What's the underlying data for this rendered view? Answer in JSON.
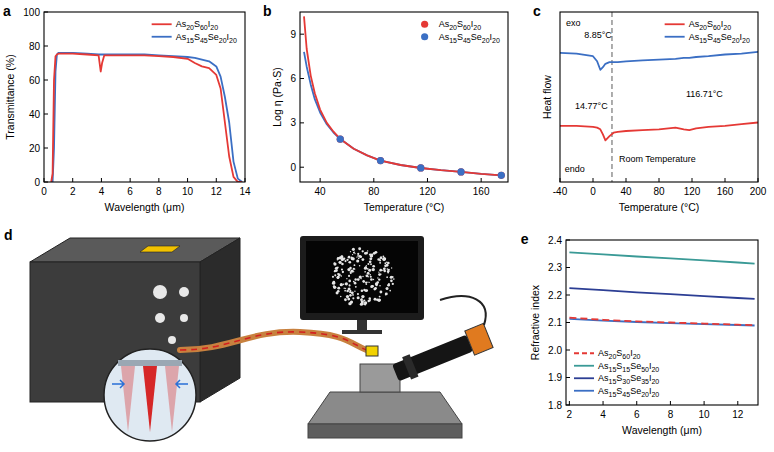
{
  "chart_data": [
    {
      "panel": "a",
      "type": "line",
      "xlabel": "Wavelength (μm)",
      "ylabel": "Transmittance (%)",
      "x": [
        0.5,
        0.6,
        0.7,
        0.8,
        0.9,
        1.0,
        2,
        3,
        3.8,
        3.95,
        4.05,
        4.2,
        5,
        6,
        7,
        8,
        9,
        10,
        10.5,
        11,
        11.5,
        12,
        12.3,
        12.6,
        12.9,
        13.2,
        13.5,
        13.8
      ],
      "xlim": [
        0,
        14
      ],
      "xticks": [
        0,
        2,
        4,
        6,
        8,
        10,
        12,
        14
      ],
      "ylim": [
        0,
        100
      ],
      "yticks": [
        0,
        20,
        40,
        60,
        80,
        100
      ],
      "grid": false,
      "legend": "top-right",
      "series": [
        {
          "name": "As20S60I20",
          "color": "#e53935",
          "values": [
            0,
            5,
            60,
            74,
            75,
            75.5,
            75.5,
            75,
            74.5,
            65,
            70,
            74.5,
            74.5,
            74.5,
            74.5,
            74,
            73.5,
            72.5,
            70,
            68,
            67,
            63,
            55,
            35,
            15,
            3,
            0,
            0
          ]
        },
        {
          "name": "As15S45Se20I20",
          "color": "#3b6fc4",
          "values": [
            0,
            0,
            20,
            65,
            75,
            76,
            76,
            75.5,
            75,
            75,
            75,
            75,
            75,
            75,
            75,
            74.5,
            74,
            73.5,
            73,
            72,
            71,
            68,
            62,
            50,
            35,
            12,
            2,
            0
          ]
        }
      ]
    },
    {
      "panel": "b",
      "type": "line",
      "xlabel": "Temperature (°C)",
      "ylabel": "Log η (Pa·S)",
      "x": [
        28,
        30,
        33,
        36,
        40,
        45,
        50,
        55,
        65,
        75,
        85,
        100,
        115,
        130,
        145,
        160,
        175
      ],
      "xlim": [
        25,
        180
      ],
      "xticks": [
        40,
        80,
        120,
        160
      ],
      "ylim": [
        -1,
        10.5
      ],
      "yticks": [
        0,
        3,
        6,
        9
      ],
      "grid": false,
      "legend": "top-right",
      "series": [
        {
          "type": "line",
          "color": "#e53935",
          "values": [
            10.2,
            8.0,
            6.2,
            5.0,
            3.9,
            3.0,
            2.4,
            1.9,
            1.25,
            0.8,
            0.45,
            0.15,
            -0.05,
            -0.2,
            -0.32,
            -0.45,
            -0.55
          ]
        },
        {
          "type": "line",
          "color": "#3b6fc4",
          "values": [
            7.8,
            6.8,
            5.6,
            4.6,
            3.7,
            2.9,
            2.35,
            1.9,
            1.25,
            0.8,
            0.45,
            0.15,
            -0.05,
            -0.2,
            -0.32,
            -0.45,
            -0.55
          ]
        },
        {
          "type": "scatter",
          "name": "As20S60I20",
          "color": "#e53935",
          "marker": "circle",
          "values": [
            null,
            null,
            null,
            null,
            null,
            null,
            null,
            1.9,
            null,
            null,
            0.45,
            null,
            -0.05,
            null,
            -0.32,
            null,
            -0.55
          ]
        },
        {
          "type": "scatter",
          "name": "As15S45Se20I20",
          "color": "#3b6fc4",
          "marker": "circle",
          "values": [
            null,
            null,
            null,
            null,
            null,
            null,
            null,
            1.9,
            null,
            null,
            0.45,
            null,
            -0.05,
            null,
            -0.32,
            null,
            -0.55
          ]
        }
      ]
    },
    {
      "panel": "c",
      "type": "line",
      "xlabel": "Temperature (°C)",
      "ylabel": "Heat flow",
      "x": [
        -40,
        -20,
        0,
        5,
        8.85,
        12,
        15,
        20,
        25,
        30,
        40,
        60,
        80,
        100,
        110,
        116.71,
        125,
        140,
        160,
        180,
        200
      ],
      "xlim": [
        -40,
        200
      ],
      "xticks": [
        -40,
        0,
        40,
        80,
        120,
        160,
        200
      ],
      "ylim": [
        0,
        10
      ],
      "tick_labels": "x",
      "grid": false,
      "legend": "top-right",
      "reference_x": 23,
      "annotations": [
        {
          "text": "8.85°C",
          "x": 6,
          "y": 8.5
        },
        {
          "text": "14.77°C",
          "x": -2,
          "y": 4.3
        },
        {
          "text": "116.71°C",
          "x": 135,
          "y": 5.0
        },
        {
          "text": "Room Temperature",
          "x": 78,
          "y": 1.2
        },
        {
          "text": "exo",
          "x": -24,
          "y": 9.2
        },
        {
          "text": "endo",
          "x": -22,
          "y": 0.6
        }
      ],
      "series": [
        {
          "name": "As20S60I20",
          "color": "#e53935",
          "values": [
            3.3,
            3.3,
            3.25,
            3.2,
            3.1,
            2.8,
            2.45,
            2.7,
            2.9,
            2.95,
            3.0,
            3.05,
            3.1,
            3.2,
            3.1,
            3.05,
            3.15,
            3.25,
            3.3,
            3.4,
            3.5
          ]
        },
        {
          "name": "As15S45Se20I20",
          "color": "#3b6fc4",
          "values": [
            7.6,
            7.55,
            7.4,
            7.1,
            6.6,
            6.75,
            6.95,
            7.05,
            7.05,
            7.05,
            7.1,
            7.15,
            7.2,
            7.25,
            7.3,
            7.3,
            7.35,
            7.4,
            7.5,
            7.55,
            7.65
          ]
        }
      ]
    },
    {
      "panel": "e",
      "type": "line",
      "xlabel": "Wavelength (μm)",
      "ylabel": "Refractive index",
      "x": [
        2,
        4,
        6,
        8,
        10,
        12,
        13
      ],
      "xlim": [
        1.8,
        13.2
      ],
      "xticks": [
        2,
        4,
        6,
        8,
        10,
        12
      ],
      "ylim": [
        1.8,
        2.4
      ],
      "yticks": [
        1.8,
        1.9,
        {
          "value": 2,
          "label": "2.0"
        },
        2.1,
        2.2,
        2.3,
        2.4
      ],
      "grid": false,
      "legend": "bottom-left",
      "series": [
        {
          "name": "As20S60I20",
          "color": "#e53935",
          "line_style": "dashed",
          "values": [
            2.118,
            2.11,
            2.104,
            2.1,
            2.096,
            2.092,
            2.09
          ]
        },
        {
          "name": "As15S15Se50I20",
          "color": "#3a9a96",
          "line_style": "solid",
          "values": [
            2.355,
            2.348,
            2.34,
            2.333,
            2.326,
            2.318,
            2.314
          ]
        },
        {
          "name": "As15S30Se35I20",
          "color": "#2c3e94",
          "line_style": "solid",
          "values": [
            2.225,
            2.218,
            2.21,
            2.203,
            2.196,
            2.189,
            2.186
          ]
        },
        {
          "name": "As15S45Se20I20",
          "color": "#3b6fc4",
          "line_style": "solid",
          "values": [
            2.113,
            2.107,
            2.102,
            2.098,
            2.094,
            2.091,
            2.089
          ]
        }
      ]
    }
  ],
  "diagram": {
    "panel": "d"
  }
}
